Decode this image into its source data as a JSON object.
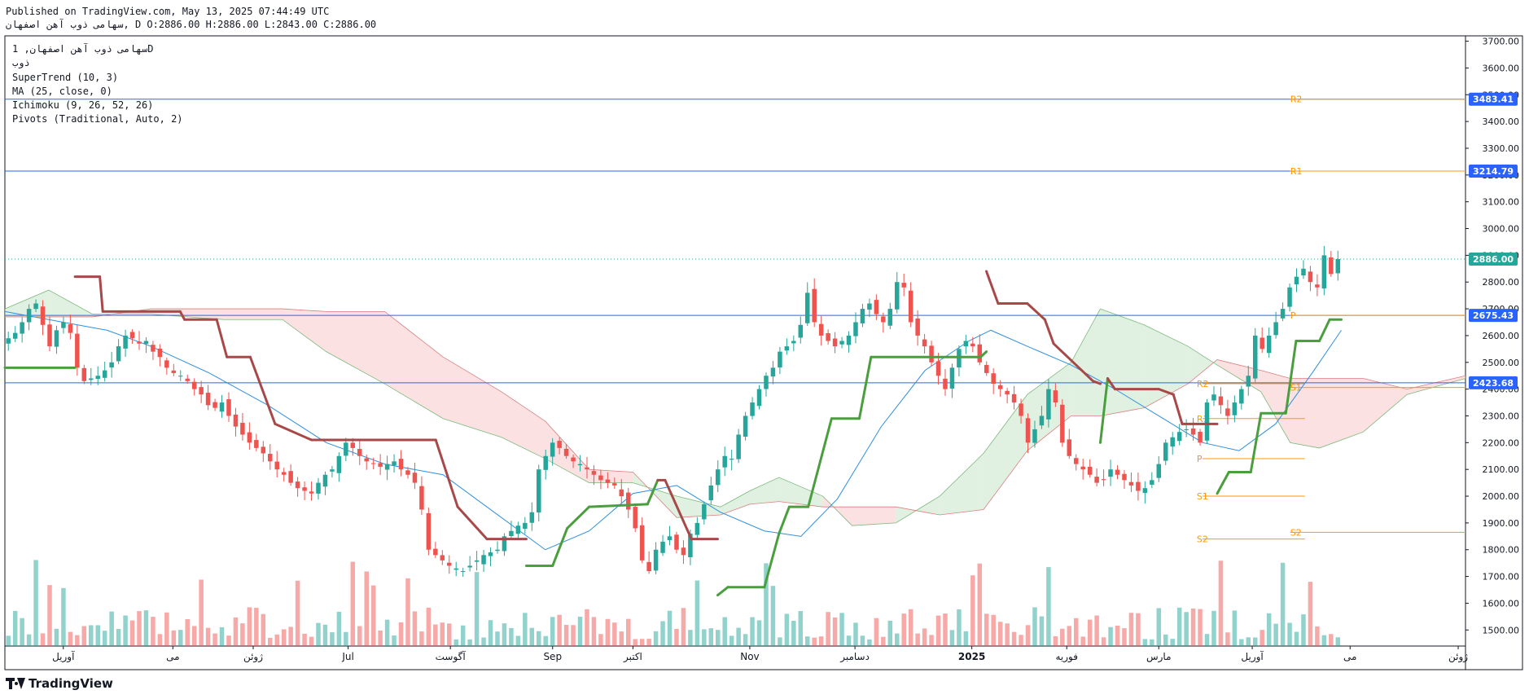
{
  "header": {
    "published": "Published on TradingView.com, May 13, 2025 07:44:49 UTC",
    "ohlc": "سهامی ذوب آهن اصفهان, D O:2886.00 H:2886.00 L:2843.00 C:2886.00"
  },
  "legend": {
    "symbol": "سهامی ذوب آهن اصفهان, 1D",
    "ticker": "ذوب",
    "supertrend": "SuperTrend (10, 3)",
    "ma": "MA (25, close, 0)",
    "ichimoku": "Ichimoku (9, 26, 52, 26)",
    "pivots": "Pivots (Traditional, Auto, 2)"
  },
  "brand": {
    "name": "TradingView"
  },
  "colors": {
    "up": "#26a69a",
    "down": "#ef5350",
    "supertrend_up": "#4a9e3e",
    "supertrend_down": "#a84848",
    "ma": "#2e8fe0",
    "hline": "#2962ff",
    "pivot": "#ff9800",
    "cloud_bull": "#c8e6c9",
    "cloud_bear": "#f8c8c8"
  },
  "chart_data": {
    "type": "candlestick",
    "title": "",
    "ylim": [
      1440,
      3720
    ],
    "y_ticks": [
      1500,
      1600,
      1700,
      1800,
      1900,
      2000,
      2100,
      2200,
      2300,
      2400,
      2500,
      2600,
      2700,
      2800,
      2900,
      3000,
      3100,
      3200,
      3300,
      3400,
      3500,
      3600,
      3700
    ],
    "x_ticks": [
      {
        "label": "آوریل",
        "pos": 0.04
      },
      {
        "label": "می",
        "pos": 0.115
      },
      {
        "label": "ژوئن",
        "pos": 0.17
      },
      {
        "label": "Jul",
        "pos": 0.235
      },
      {
        "label": "آگوست",
        "pos": 0.305
      },
      {
        "label": "Sep",
        "pos": 0.375
      },
      {
        "label": "اکتبر",
        "pos": 0.43
      },
      {
        "label": "Nov",
        "pos": 0.51
      },
      {
        "label": "دسامبر",
        "pos": 0.582
      },
      {
        "label": "2025",
        "pos": 0.662
      },
      {
        "label": "فوریه",
        "pos": 0.727
      },
      {
        "label": "مارس",
        "pos": 0.79
      },
      {
        "label": "آوریل",
        "pos": 0.854
      },
      {
        "label": "می",
        "pos": 0.921
      },
      {
        "label": "ژوئن",
        "pos": 0.995
      }
    ],
    "close": [
      2590,
      2610,
      2650,
      2700,
      2720,
      2640,
      2560,
      2620,
      2650,
      2610,
      2480,
      2430,
      2440,
      2450,
      2470,
      2500,
      2560,
      2600,
      2590,
      2570,
      2580,
      2540,
      2520,
      2480,
      2460,
      2450,
      2430,
      2400,
      2380,
      2340,
      2330,
      2350,
      2300,
      2260,
      2230,
      2200,
      2180,
      2160,
      2130,
      2100,
      2080,
      2050,
      2030,
      2020,
      2010,
      2050,
      2080,
      2100,
      2150,
      2200,
      2180,
      2150,
      2130,
      2120,
      2110,
      2120,
      2130,
      2100,
      2080,
      2050,
      1950,
      1800,
      1780,
      1760,
      1740,
      1730,
      1720,
      1740,
      1760,
      1780,
      1790,
      1800,
      1850,
      1870,
      1890,
      1900,
      1940,
      2100,
      2150,
      2200,
      2180,
      2150,
      2130,
      2120,
      2100,
      2080,
      2060,
      2050,
      2040,
      2000,
      1950,
      1880,
      1760,
      1720,
      1800,
      1830,
      1850,
      1800,
      1780,
      1860,
      1900,
      1970,
      2040,
      2100,
      2150,
      2140,
      2230,
      2300,
      2350,
      2400,
      2450,
      2480,
      2540,
      2560,
      2580,
      2640,
      2760,
      2650,
      2600,
      2580,
      2560,
      2580,
      2600,
      2650,
      2700,
      2720,
      2680,
      2650,
      2700,
      2800,
      2780,
      2650,
      2600,
      2560,
      2500,
      2450,
      2400,
      2480,
      2550,
      2580,
      2560,
      2500,
      2460,
      2420,
      2400,
      2380,
      2350,
      2300,
      2200,
      2250,
      2300,
      2400,
      2350,
      2200,
      2150,
      2120,
      2100,
      2080,
      2050,
      2060,
      2100,
      2080,
      2060,
      2040,
      2020,
      2030,
      2060,
      2120,
      2200,
      2220,
      2240,
      2250,
      2230,
      2200,
      2350,
      2380,
      2340,
      2300,
      2350,
      2400,
      2450,
      2600,
      2550,
      2600,
      2650,
      2700,
      2780,
      2820,
      2850,
      2800,
      2780,
      2900,
      2830,
      2886
    ],
    "supertrend": [
      {
        "x": 0.0,
        "y": 2480,
        "trend": "up"
      },
      {
        "x": 0.048,
        "y": 2480,
        "trend": "up"
      },
      {
        "x": 0.048,
        "y": 2820,
        "trend": "down"
      },
      {
        "x": 0.065,
        "y": 2820,
        "trend": "down"
      },
      {
        "x": 0.067,
        "y": 2690,
        "trend": "down"
      },
      {
        "x": 0.12,
        "y": 2690,
        "trend": "down"
      },
      {
        "x": 0.123,
        "y": 2660,
        "trend": "down"
      },
      {
        "x": 0.145,
        "y": 2660,
        "trend": "down"
      },
      {
        "x": 0.152,
        "y": 2520,
        "trend": "down"
      },
      {
        "x": 0.168,
        "y": 2520,
        "trend": "down"
      },
      {
        "x": 0.185,
        "y": 2270,
        "trend": "down"
      },
      {
        "x": 0.21,
        "y": 2210,
        "trend": "down"
      },
      {
        "x": 0.295,
        "y": 2210,
        "trend": "down"
      },
      {
        "x": 0.31,
        "y": 1960,
        "trend": "down"
      },
      {
        "x": 0.33,
        "y": 1840,
        "trend": "down"
      },
      {
        "x": 0.357,
        "y": 1840,
        "trend": "down"
      },
      {
        "x": 0.357,
        "y": 1740,
        "trend": "up"
      },
      {
        "x": 0.375,
        "y": 1740,
        "trend": "up"
      },
      {
        "x": 0.385,
        "y": 1880,
        "trend": "up"
      },
      {
        "x": 0.4,
        "y": 1960,
        "trend": "up"
      },
      {
        "x": 0.44,
        "y": 1970,
        "trend": "up"
      },
      {
        "x": 0.447,
        "y": 2060,
        "trend": "up"
      },
      {
        "x": 0.447,
        "y": 2060,
        "trend": "down"
      },
      {
        "x": 0.452,
        "y": 2060,
        "trend": "down"
      },
      {
        "x": 0.47,
        "y": 1840,
        "trend": "down"
      },
      {
        "x": 0.488,
        "y": 1840,
        "trend": "down"
      },
      {
        "x": 0.488,
        "y": 1630,
        "trend": "up"
      },
      {
        "x": 0.495,
        "y": 1660,
        "trend": "up"
      },
      {
        "x": 0.52,
        "y": 1660,
        "trend": "up"
      },
      {
        "x": 0.53,
        "y": 1860,
        "trend": "up"
      },
      {
        "x": 0.537,
        "y": 1960,
        "trend": "up"
      },
      {
        "x": 0.55,
        "y": 1960,
        "trend": "up"
      },
      {
        "x": 0.566,
        "y": 2290,
        "trend": "up"
      },
      {
        "x": 0.585,
        "y": 2290,
        "trend": "up"
      },
      {
        "x": 0.593,
        "y": 2520,
        "trend": "up"
      },
      {
        "x": 0.668,
        "y": 2520,
        "trend": "up"
      },
      {
        "x": 0.672,
        "y": 2540,
        "trend": "up"
      },
      {
        "x": 0.672,
        "y": 2840,
        "trend": "down"
      },
      {
        "x": 0.68,
        "y": 2720,
        "trend": "down"
      },
      {
        "x": 0.7,
        "y": 2720,
        "trend": "down"
      },
      {
        "x": 0.712,
        "y": 2660,
        "trend": "down"
      },
      {
        "x": 0.718,
        "y": 2570,
        "trend": "down"
      },
      {
        "x": 0.745,
        "y": 2430,
        "trend": "down"
      },
      {
        "x": 0.75,
        "y": 2420,
        "trend": "down"
      },
      {
        "x": 0.75,
        "y": 2200,
        "trend": "up"
      },
      {
        "x": 0.755,
        "y": 2440,
        "trend": "up"
      },
      {
        "x": 0.755,
        "y": 2440,
        "trend": "down"
      },
      {
        "x": 0.76,
        "y": 2400,
        "trend": "down"
      },
      {
        "x": 0.79,
        "y": 2400,
        "trend": "down"
      },
      {
        "x": 0.8,
        "y": 2380,
        "trend": "down"
      },
      {
        "x": 0.806,
        "y": 2270,
        "trend": "down"
      },
      {
        "x": 0.83,
        "y": 2270,
        "trend": "down"
      },
      {
        "x": 0.83,
        "y": 2010,
        "trend": "up"
      },
      {
        "x": 0.838,
        "y": 2090,
        "trend": "up"
      },
      {
        "x": 0.853,
        "y": 2090,
        "trend": "up"
      },
      {
        "x": 0.86,
        "y": 2310,
        "trend": "up"
      },
      {
        "x": 0.877,
        "y": 2310,
        "trend": "up"
      },
      {
        "x": 0.884,
        "y": 2580,
        "trend": "up"
      },
      {
        "x": 0.9,
        "y": 2580,
        "trend": "up"
      },
      {
        "x": 0.907,
        "y": 2660,
        "trend": "up"
      },
      {
        "x": 0.915,
        "y": 2660,
        "trend": "up"
      }
    ],
    "ma": [
      {
        "x": 0.0,
        "y": 2690
      },
      {
        "x": 0.03,
        "y": 2660
      },
      {
        "x": 0.07,
        "y": 2620
      },
      {
        "x": 0.1,
        "y": 2560
      },
      {
        "x": 0.14,
        "y": 2460
      },
      {
        "x": 0.18,
        "y": 2340
      },
      {
        "x": 0.22,
        "y": 2200
      },
      {
        "x": 0.26,
        "y": 2120
      },
      {
        "x": 0.3,
        "y": 2080
      },
      {
        "x": 0.34,
        "y": 1920
      },
      {
        "x": 0.37,
        "y": 1800
      },
      {
        "x": 0.4,
        "y": 1870
      },
      {
        "x": 0.43,
        "y": 2010
      },
      {
        "x": 0.46,
        "y": 2040
      },
      {
        "x": 0.49,
        "y": 1940
      },
      {
        "x": 0.52,
        "y": 1870
      },
      {
        "x": 0.545,
        "y": 1850
      },
      {
        "x": 0.57,
        "y": 1990
      },
      {
        "x": 0.6,
        "y": 2260
      },
      {
        "x": 0.63,
        "y": 2470
      },
      {
        "x": 0.66,
        "y": 2580
      },
      {
        "x": 0.675,
        "y": 2620
      },
      {
        "x": 0.7,
        "y": 2560
      },
      {
        "x": 0.73,
        "y": 2490
      },
      {
        "x": 0.76,
        "y": 2400
      },
      {
        "x": 0.79,
        "y": 2300
      },
      {
        "x": 0.82,
        "y": 2200
      },
      {
        "x": 0.845,
        "y": 2170
      },
      {
        "x": 0.87,
        "y": 2270
      },
      {
        "x": 0.895,
        "y": 2460
      },
      {
        "x": 0.915,
        "y": 2620
      }
    ],
    "cloud": [
      {
        "x": 0.0,
        "a": 2700,
        "b": 2670
      },
      {
        "x": 0.03,
        "a": 2770,
        "b": 2670
      },
      {
        "x": 0.06,
        "a": 2680,
        "b": 2670
      },
      {
        "x": 0.1,
        "a": 2680,
        "b": 2700
      },
      {
        "x": 0.15,
        "a": 2660,
        "b": 2700
      },
      {
        "x": 0.19,
        "a": 2660,
        "b": 2700
      },
      {
        "x": 0.22,
        "a": 2540,
        "b": 2690
      },
      {
        "x": 0.26,
        "a": 2420,
        "b": 2690
      },
      {
        "x": 0.3,
        "a": 2290,
        "b": 2520
      },
      {
        "x": 0.34,
        "a": 2220,
        "b": 2390
      },
      {
        "x": 0.37,
        "a": 2140,
        "b": 2280
      },
      {
        "x": 0.4,
        "a": 2050,
        "b": 2100
      },
      {
        "x": 0.43,
        "a": 2050,
        "b": 2090
      },
      {
        "x": 0.46,
        "a": 2000,
        "b": 1920
      },
      {
        "x": 0.49,
        "a": 1960,
        "b": 1930
      },
      {
        "x": 0.51,
        "a": 2020,
        "b": 1970
      },
      {
        "x": 0.53,
        "a": 2070,
        "b": 1980
      },
      {
        "x": 0.56,
        "a": 2000,
        "b": 1960
      },
      {
        "x": 0.58,
        "a": 1890,
        "b": 1960
      },
      {
        "x": 0.61,
        "a": 1900,
        "b": 1960
      },
      {
        "x": 0.64,
        "a": 2000,
        "b": 1930
      },
      {
        "x": 0.67,
        "a": 2160,
        "b": 1950
      },
      {
        "x": 0.7,
        "a": 2380,
        "b": 2170
      },
      {
        "x": 0.73,
        "a": 2500,
        "b": 2300
      },
      {
        "x": 0.75,
        "a": 2700,
        "b": 2300
      },
      {
        "x": 0.78,
        "a": 2640,
        "b": 2330
      },
      {
        "x": 0.81,
        "a": 2560,
        "b": 2420
      },
      {
        "x": 0.83,
        "a": 2490,
        "b": 2510
      },
      {
        "x": 0.86,
        "a": 2390,
        "b": 2470
      },
      {
        "x": 0.88,
        "a": 2200,
        "b": 2440
      },
      {
        "x": 0.9,
        "a": 2180,
        "b": 2440
      },
      {
        "x": 0.93,
        "a": 2240,
        "b": 2440
      },
      {
        "x": 0.96,
        "a": 2380,
        "b": 2400
      },
      {
        "x": 1.0,
        "a": 2440,
        "b": 2450
      }
    ],
    "hlines": [
      {
        "value": 3483.41,
        "label": "3483.41"
      },
      {
        "value": 3214.79,
        "label": "3214.79"
      },
      {
        "value": 2675.43,
        "label": "2675.43"
      },
      {
        "value": 2423.68,
        "label": "2423.68"
      }
    ],
    "last_price": {
      "value": 2886,
      "label": "2886.00"
    },
    "pivots_current": [
      {
        "name": "R2",
        "value": 3483.41
      },
      {
        "name": "R1",
        "value": 3214.79
      },
      {
        "name": "P",
        "value": 2675.43
      },
      {
        "name": "S1",
        "value": 2406
      },
      {
        "name": "S2",
        "value": 1865
      }
    ],
    "pivots_previous": [
      {
        "name": "R2",
        "value": 2420
      },
      {
        "name": "R1",
        "value": 2290
      },
      {
        "name": "P",
        "value": 2140
      },
      {
        "name": "S1",
        "value": 2000
      },
      {
        "name": "S2",
        "value": 1840
      }
    ]
  }
}
